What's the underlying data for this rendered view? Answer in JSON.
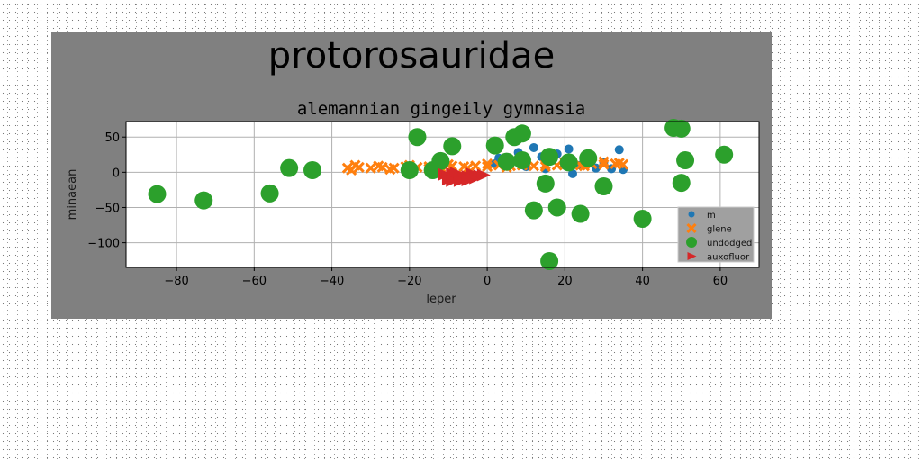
{
  "figure": {
    "suptitle": "protorosauridae",
    "background_color": "#808080"
  },
  "chart_data": {
    "type": "scatter",
    "title": "alemannian gingeily gymnasia",
    "xlabel": "leper",
    "ylabel": "minaean",
    "xlim": [
      -93,
      70
    ],
    "ylim": [
      -135,
      72
    ],
    "xticks": [
      -80,
      -60,
      -40,
      -20,
      0,
      20,
      40,
      60
    ],
    "yticks": [
      50,
      0,
      -50,
      -100
    ],
    "grid": true,
    "legend_position": "lower-right",
    "series": [
      {
        "name": "m",
        "marker": "circle",
        "color": "#1f77b4",
        "size": 5,
        "points": [
          [
            3,
            20
          ],
          [
            8,
            28
          ],
          [
            12,
            35
          ],
          [
            14,
            22
          ],
          [
            16,
            18
          ],
          [
            18,
            26
          ],
          [
            20,
            12
          ],
          [
            21,
            33
          ],
          [
            22,
            -2
          ],
          [
            24,
            10
          ],
          [
            26,
            18
          ],
          [
            28,
            6
          ],
          [
            30,
            14
          ],
          [
            32,
            5
          ],
          [
            34,
            32
          ],
          [
            35,
            4
          ],
          [
            6,
            15
          ],
          [
            10,
            8
          ],
          [
            2,
            12
          ],
          [
            15,
            5
          ]
        ]
      },
      {
        "name": "glene",
        "marker": "x",
        "color": "#ff7f0e",
        "size": 5,
        "points": [
          [
            -36,
            6
          ],
          [
            -33,
            7
          ],
          [
            -30,
            6
          ],
          [
            -27,
            7
          ],
          [
            -24,
            6
          ],
          [
            -21,
            8
          ],
          [
            -18,
            7
          ],
          [
            -15,
            8
          ],
          [
            -12,
            7
          ],
          [
            -9,
            9
          ],
          [
            -6,
            8
          ],
          [
            -3,
            9
          ],
          [
            0,
            8
          ],
          [
            3,
            10
          ],
          [
            6,
            9
          ],
          [
            9,
            10
          ],
          [
            12,
            9
          ],
          [
            15,
            11
          ],
          [
            18,
            10
          ],
          [
            21,
            11
          ],
          [
            24,
            10
          ],
          [
            27,
            12
          ],
          [
            30,
            11
          ],
          [
            33,
            12
          ],
          [
            35,
            11
          ],
          [
            -34,
            10
          ],
          [
            -28,
            9
          ],
          [
            -20,
            10
          ],
          [
            -10,
            11
          ],
          [
            0,
            12
          ],
          [
            10,
            13
          ],
          [
            20,
            14
          ],
          [
            30,
            15
          ],
          [
            34,
            13
          ],
          [
            -35,
            3
          ],
          [
            -25,
            4
          ],
          [
            -15,
            5
          ],
          [
            -5,
            6
          ],
          [
            5,
            7
          ],
          [
            15,
            8
          ],
          [
            25,
            9
          ]
        ]
      },
      {
        "name": "undodged",
        "marker": "circle",
        "color": "#2ca02c",
        "size": 10,
        "points": [
          [
            -85,
            -31
          ],
          [
            -73,
            -40
          ],
          [
            -56,
            -30
          ],
          [
            -51,
            6
          ],
          [
            -45,
            3
          ],
          [
            -20,
            3
          ],
          [
            -18,
            50
          ],
          [
            -14,
            3
          ],
          [
            -12,
            16
          ],
          [
            -9,
            37
          ],
          [
            2,
            38
          ],
          [
            5,
            15
          ],
          [
            7,
            50
          ],
          [
            9,
            17
          ],
          [
            9,
            55
          ],
          [
            15,
            -16
          ],
          [
            16,
            22
          ],
          [
            12,
            -54
          ],
          [
            18,
            -50
          ],
          [
            21,
            14
          ],
          [
            24,
            -59
          ],
          [
            26,
            20
          ],
          [
            30,
            -20
          ],
          [
            40,
            -66
          ],
          [
            48,
            63
          ],
          [
            50,
            62
          ],
          [
            50,
            -15
          ],
          [
            51,
            17
          ],
          [
            61,
            25
          ],
          [
            16,
            -126
          ]
        ]
      },
      {
        "name": "auxofluor",
        "marker": "triangle-right",
        "color": "#d62728",
        "size": 7,
        "points": [
          [
            -11,
            -3
          ],
          [
            -10,
            -10
          ],
          [
            -9,
            -2
          ],
          [
            -8,
            -8
          ],
          [
            -7,
            -4
          ],
          [
            -6,
            -10
          ],
          [
            -5,
            -6
          ],
          [
            -4,
            -2
          ],
          [
            -3,
            -8
          ],
          [
            -2,
            -5
          ],
          [
            -1,
            -4
          ],
          [
            -10,
            -6
          ],
          [
            -8,
            -1
          ],
          [
            -6,
            -7
          ],
          [
            -4,
            -9
          ],
          [
            -9,
            -12
          ],
          [
            -7,
            -12
          ],
          [
            -5,
            -11
          ]
        ]
      }
    ]
  }
}
